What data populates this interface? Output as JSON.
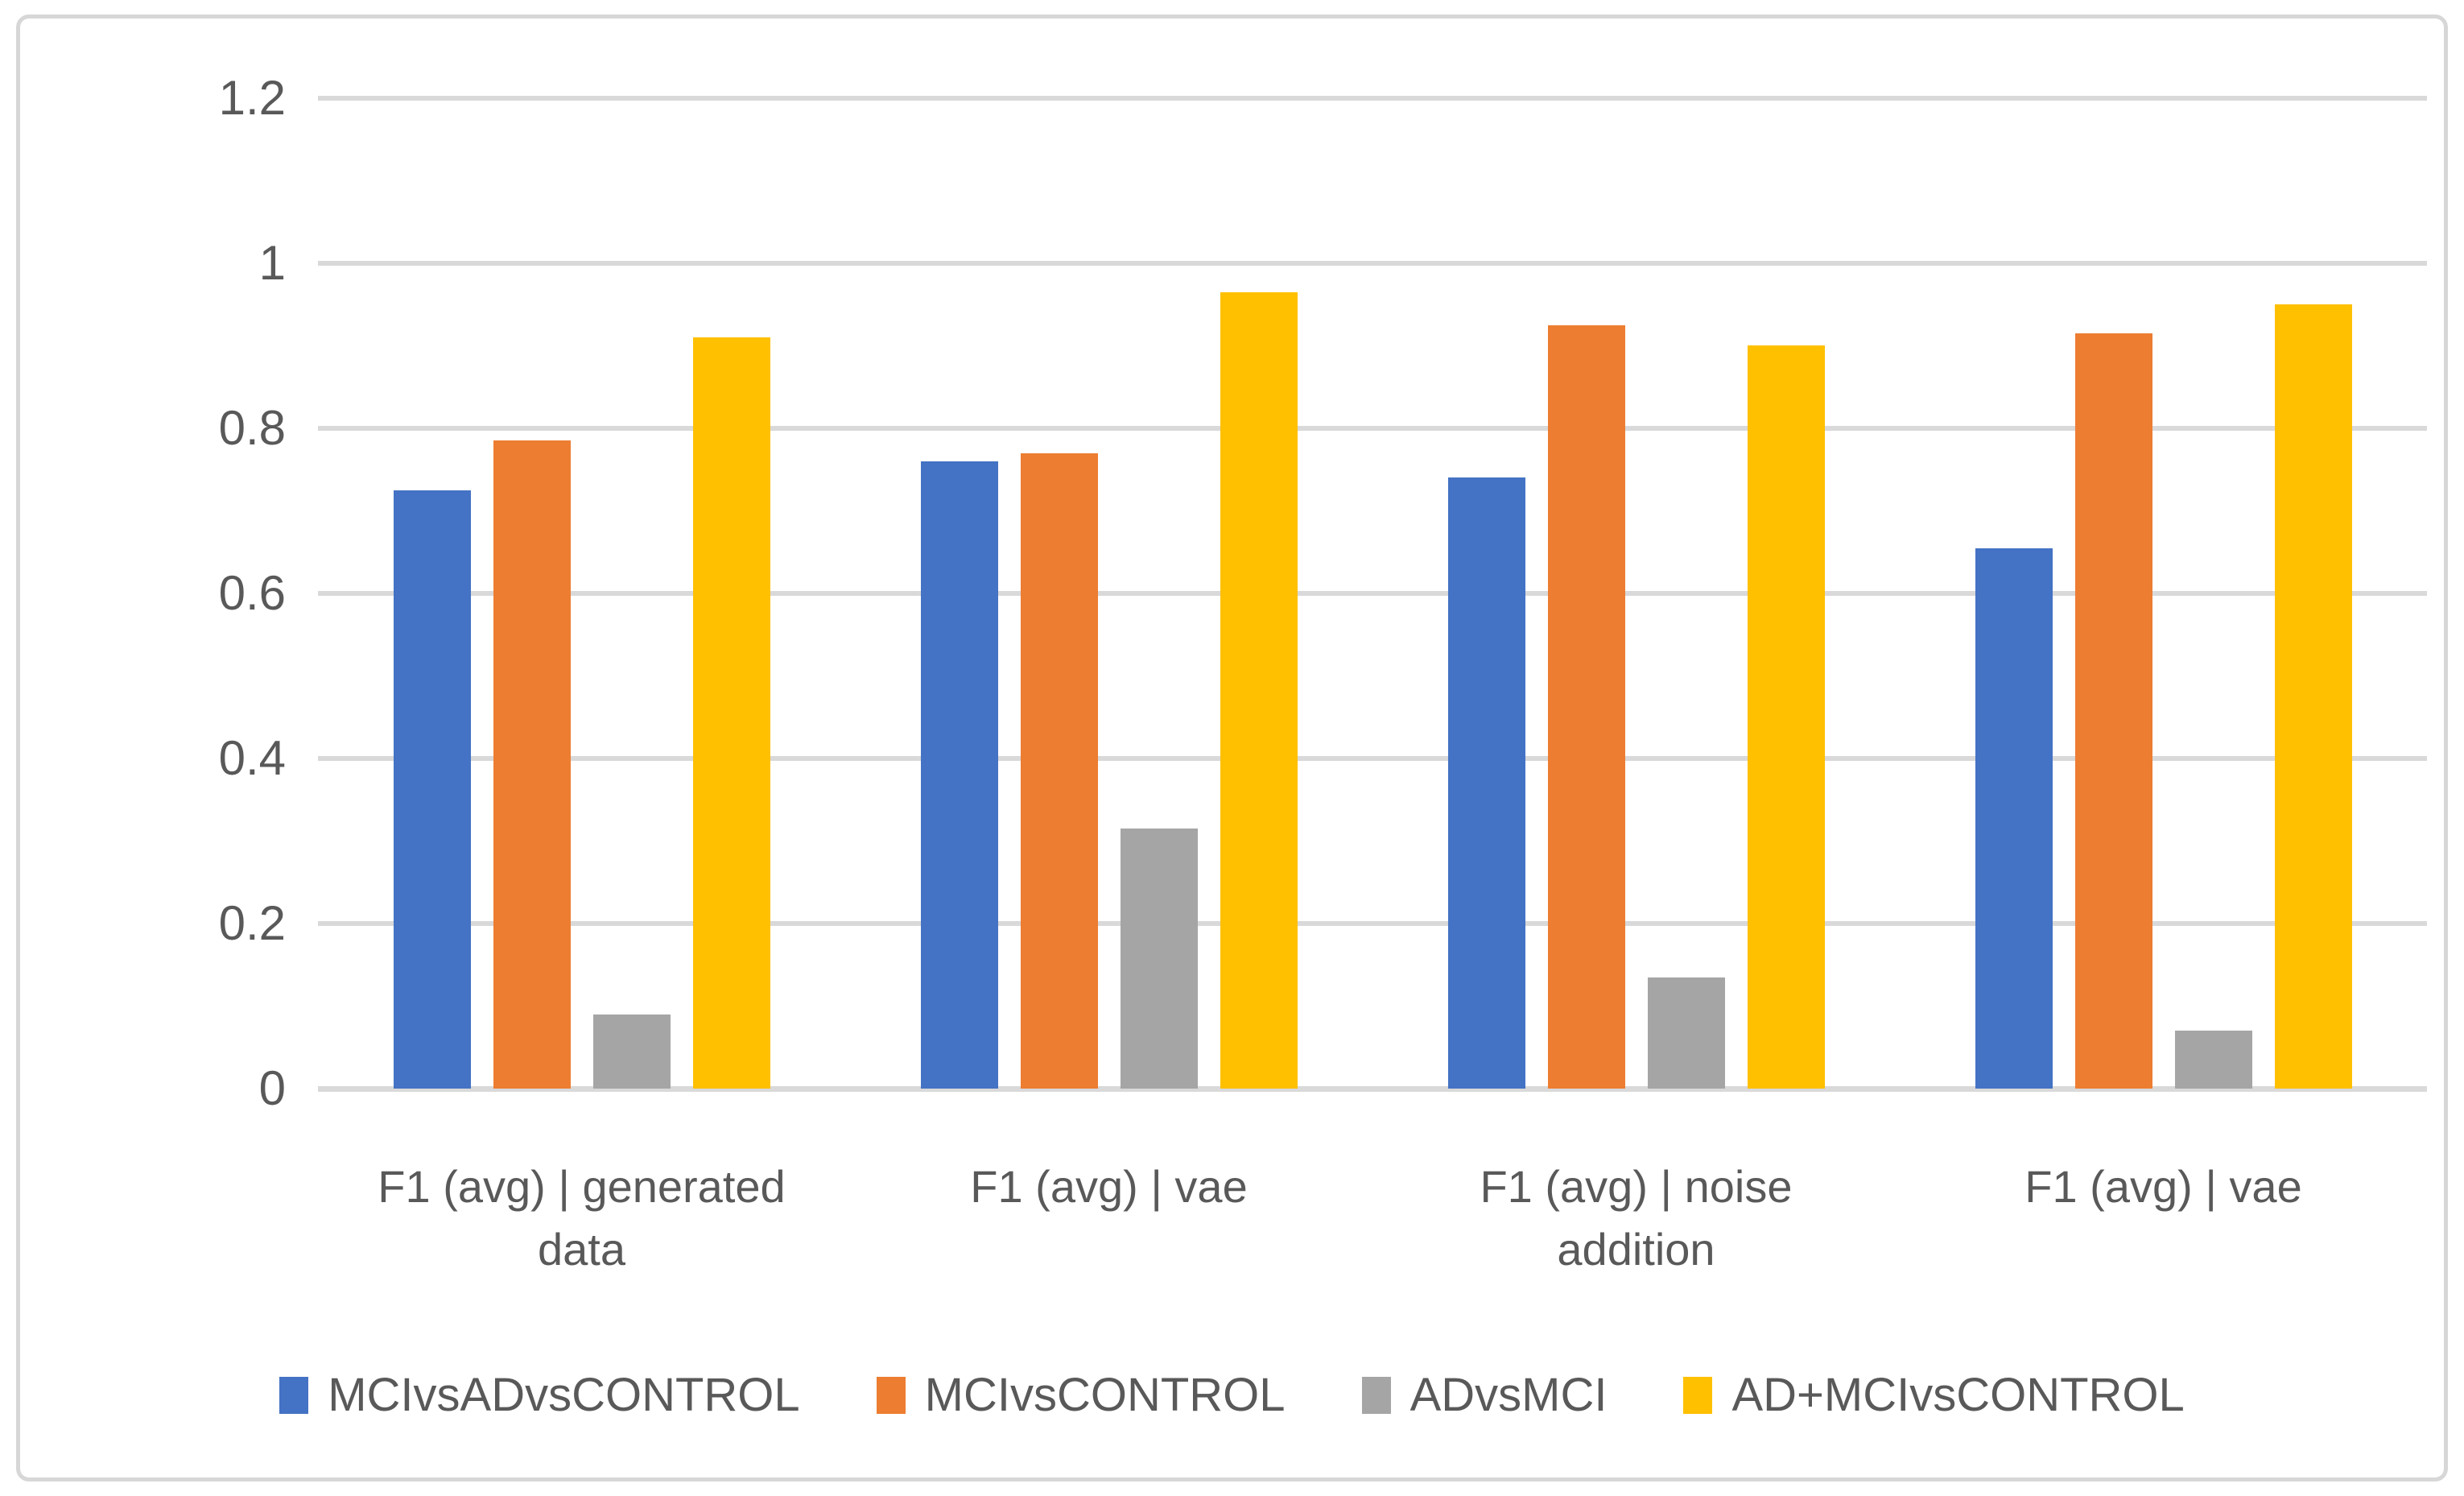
{
  "chart_data": {
    "type": "bar",
    "title": "",
    "xlabel": "",
    "ylabel": "",
    "categories": [
      "F1 (avg) | generated data",
      "F1 (avg) | vae",
      "F1 (avg) | noise addition",
      "F1 (avg) | vae"
    ],
    "category_lines": [
      [
        "F1 (avg) | generated",
        "data"
      ],
      [
        "F1 (avg) | vae"
      ],
      [
        "F1 (avg) | noise",
        "addition"
      ],
      [
        "F1 (avg) | vae"
      ]
    ],
    "series": [
      {
        "name": "MCIvsADvsCONTROL",
        "color": "#4472C4",
        "values": [
          0.725,
          0.76,
          0.74,
          0.655
        ]
      },
      {
        "name": "MCIvsCONTROL",
        "color": "#ED7D31",
        "values": [
          0.785,
          0.77,
          0.925,
          0.915
        ]
      },
      {
        "name": "ADvsMCI",
        "color": "#A5A5A5",
        "values": [
          0.09,
          0.315,
          0.135,
          0.07
        ]
      },
      {
        "name": "AD+MCIvsCONTROL",
        "color": "#FFC000",
        "values": [
          0.91,
          0.965,
          0.9,
          0.95
        ]
      }
    ],
    "ylim": [
      0,
      1.2
    ],
    "ytick_step": 0.2,
    "yticks_top_to_bottom": [
      "1.2",
      "1",
      "0.8",
      "0.6",
      "0.4",
      "0.2",
      "0"
    ],
    "grid": true,
    "legend_position": "bottom"
  },
  "colors": {
    "gridline": "#D9D9D9",
    "axis_text": "#595959",
    "frame_border": "#D7D7D7",
    "background": "#FFFFFF"
  }
}
